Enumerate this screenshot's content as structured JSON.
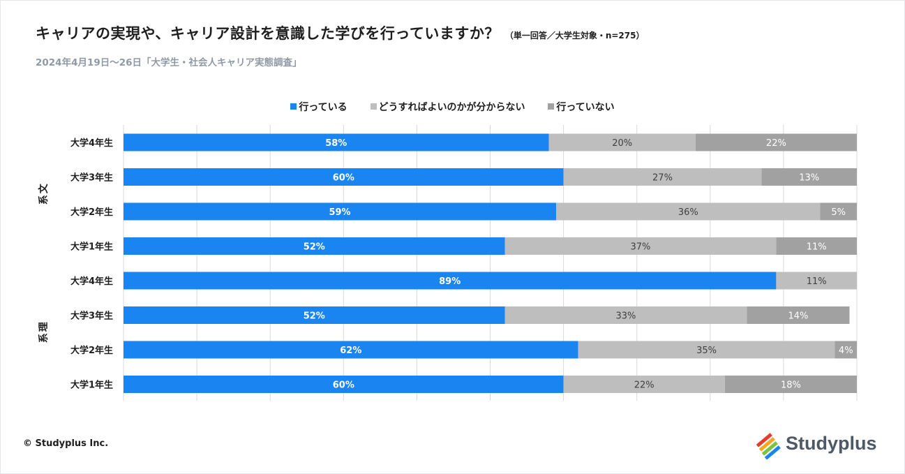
{
  "chart_data": {
    "type": "stacked-bar-horizontal",
    "title": "キャリアの実現や、キャリア設計を意識した学びを行っていますか？",
    "title_note": "（単一回答／大学生対象・n=275）",
    "subtitle": "2024年4月19日～26日「大学生・社会人キャリア実態調査」",
    "legend": [
      {
        "name": "行っている",
        "color": "#1a85f0"
      },
      {
        "name": "どうすればよいのかが分からない",
        "color": "#bebebe"
      },
      {
        "name": "行っていない",
        "color": "#a1a1a1"
      }
    ],
    "groups": [
      {
        "name": "文系",
        "rows": [
          {
            "label": "大学4年生",
            "values": [
              58,
              20,
              22
            ]
          },
          {
            "label": "大学3年生",
            "values": [
              60,
              27,
              13
            ]
          },
          {
            "label": "大学2年生",
            "values": [
              59,
              36,
              5
            ]
          },
          {
            "label": "大学1年生",
            "values": [
              52,
              37,
              11
            ]
          }
        ]
      },
      {
        "name": "理系",
        "rows": [
          {
            "label": "大学4年生",
            "values": [
              89,
              11,
              0
            ]
          },
          {
            "label": "大学3年生",
            "values": [
              52,
              33,
              14
            ]
          },
          {
            "label": "大学2年生",
            "values": [
              62,
              35,
              4
            ]
          },
          {
            "label": "大学1年生",
            "values": [
              60,
              22,
              18
            ]
          }
        ]
      }
    ],
    "value_suffix": "%",
    "xlim": [
      0,
      100
    ],
    "grid": true
  },
  "footer": {
    "copyright": "© Studyplus Inc.",
    "logo_text": "Studyplus"
  }
}
